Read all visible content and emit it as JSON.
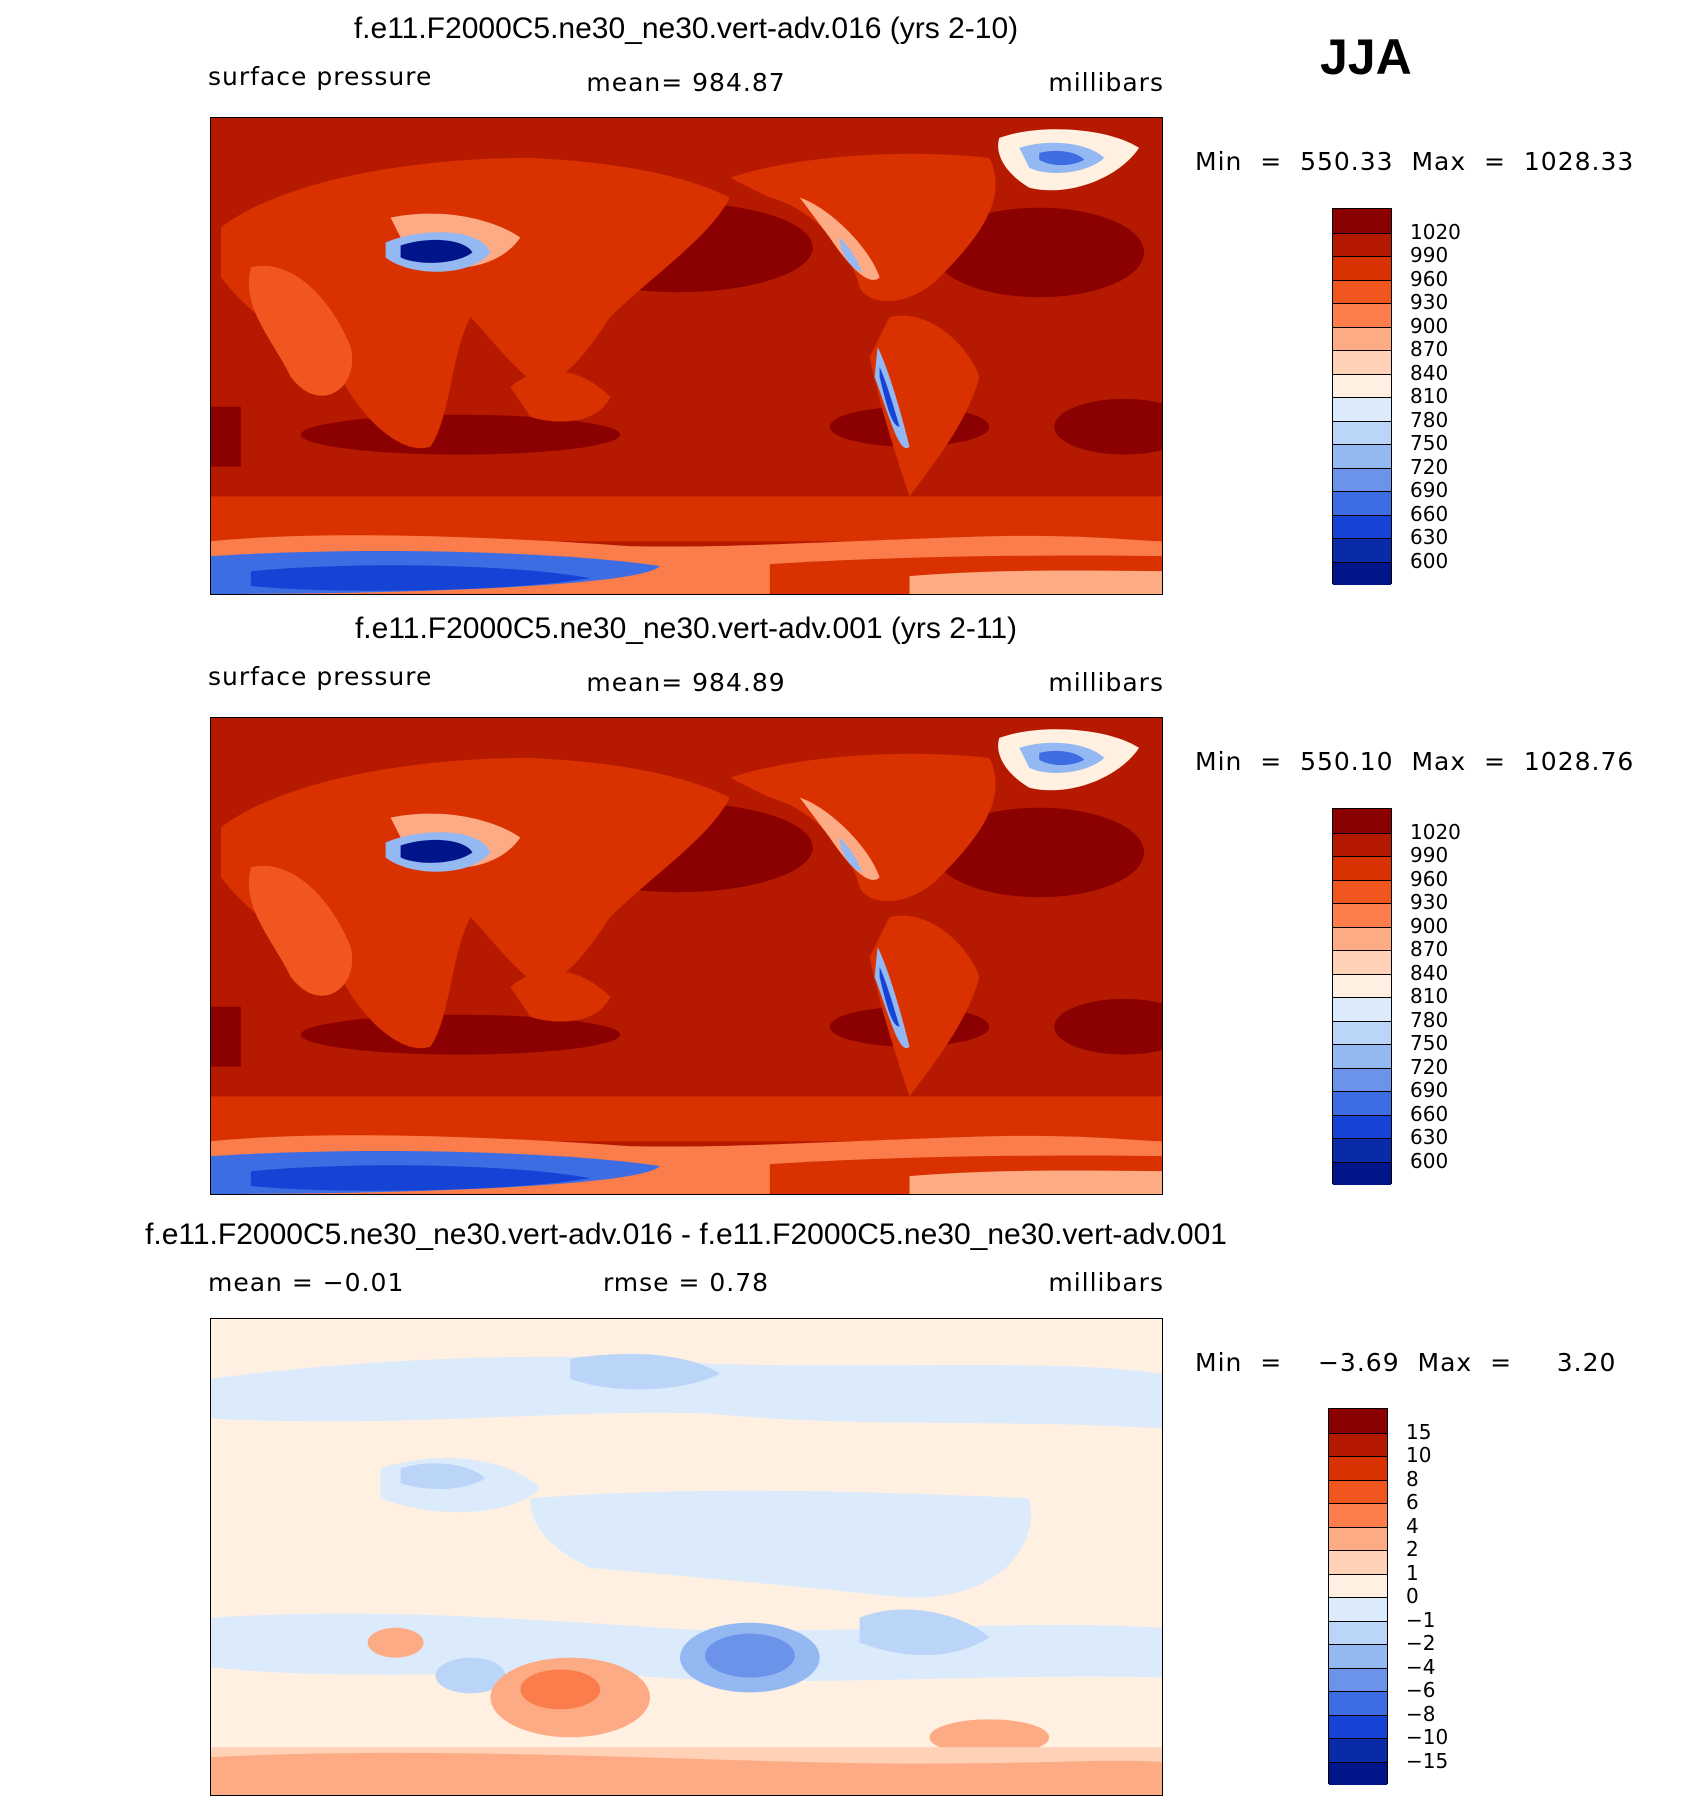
{
  "season": "JJA",
  "panels": [
    {
      "title": "f.e11.F2000C5.ne30_ne30.vert-adv.016 (yrs 2-10)",
      "left_label": "surface pressure",
      "center_label": "mean=  984.87",
      "right_label": "millibars",
      "minmax": "Min  =  550.33  Max  =  1028.33"
    },
    {
      "title": "f.e11.F2000C5.ne30_ne30.vert-adv.001 (yrs 2-11)",
      "left_label": "surface pressure",
      "center_label": "mean=  984.89",
      "right_label": "millibars",
      "minmax": "Min  =  550.10  Max  =  1028.76"
    },
    {
      "title": "f.e11.F2000C5.ne30_ne30.vert-adv.016 - f.e11.F2000C5.ne30_ne30.vert-adv.001",
      "left_label": "mean  =    −0.01",
      "center_label": "rmse  =     0.78",
      "right_label": "millibars",
      "minmax": "Min  =    −3.69  Max  =     3.20"
    }
  ],
  "chart_data": [
    {
      "type": "heatmap",
      "title": "f.e11.F2000C5.ne30_ne30.vert-adv.016 (yrs 2-10)",
      "variable": "surface pressure",
      "units": "millibars",
      "mean": 984.87,
      "min": 550.33,
      "max": 1028.33,
      "colorbar_levels": [
        "1020",
        "990",
        "960",
        "930",
        "900",
        "870",
        "840",
        "810",
        "780",
        "750",
        "720",
        "690",
        "660",
        "630",
        "600"
      ],
      "colorbar_colors": [
        "#8b0000",
        "#b51a00",
        "#d93100",
        "#f2561f",
        "#fa7d4b",
        "#fdab85",
        "#ffd2b8",
        "#fff0e2",
        "#dcebfc",
        "#bad5f8",
        "#93b8f2",
        "#6b93ea",
        "#3e6ce3",
        "#1543d6",
        "#0a2ba8",
        "#00158a"
      ]
    },
    {
      "type": "heatmap",
      "title": "f.e11.F2000C5.ne30_ne30.vert-adv.001 (yrs 2-11)",
      "variable": "surface pressure",
      "units": "millibars",
      "mean": 984.89,
      "min": 550.1,
      "max": 1028.76,
      "colorbar_levels": [
        "1020",
        "990",
        "960",
        "930",
        "900",
        "870",
        "840",
        "810",
        "780",
        "750",
        "720",
        "690",
        "660",
        "630",
        "600"
      ],
      "colorbar_colors": [
        "#8b0000",
        "#b51a00",
        "#d93100",
        "#f2561f",
        "#fa7d4b",
        "#fdab85",
        "#ffd2b8",
        "#fff0e2",
        "#dcebfc",
        "#bad5f8",
        "#93b8f2",
        "#6b93ea",
        "#3e6ce3",
        "#1543d6",
        "#0a2ba8",
        "#00158a"
      ]
    },
    {
      "type": "heatmap",
      "title": "f.e11.F2000C5.ne30_ne30.vert-adv.016 - f.e11.F2000C5.ne30_ne30.vert-adv.001",
      "units": "millibars",
      "mean": -0.01,
      "rmse": 0.78,
      "min": -3.69,
      "max": 3.2,
      "colorbar_levels": [
        "15",
        "10",
        "8",
        "6",
        "4",
        "2",
        "1",
        "0",
        "−1",
        "−2",
        "−4",
        "−6",
        "−8",
        "−10",
        "−15"
      ],
      "colorbar_colors": [
        "#8b0000",
        "#b51a00",
        "#d93100",
        "#f2561f",
        "#fa7d4b",
        "#fdab85",
        "#ffd2b8",
        "#fff0e2",
        "#dcebfc",
        "#bad5f8",
        "#93b8f2",
        "#6b93ea",
        "#3e6ce3",
        "#1543d6",
        "#0a2ba8",
        "#00158a"
      ]
    }
  ]
}
